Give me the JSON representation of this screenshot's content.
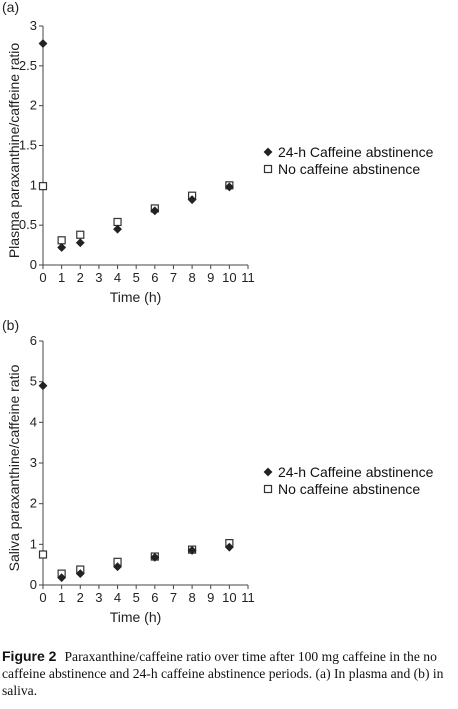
{
  "chart_data": [
    {
      "type": "scatter",
      "panel_label": "(a)",
      "xlabel": "Time (h)",
      "ylabel": "Plasma paraxanthine/caffeine ratio",
      "xlim": [
        0,
        11
      ],
      "ylim": [
        0,
        3
      ],
      "xticks": [
        0,
        1,
        2,
        3,
        4,
        5,
        6,
        7,
        8,
        9,
        10,
        11
      ],
      "yticks": [
        0,
        0.5,
        1,
        1.5,
        2,
        2.5,
        3
      ],
      "ytick_labels": [
        "0",
        "0.5",
        "1",
        "1.5",
        "2",
        "2.5",
        "3"
      ],
      "legend_position": "right",
      "grid": false,
      "series": [
        {
          "name": "24-h Caffeine abstinence",
          "marker": "diamond-filled",
          "x": [
            0,
            1,
            2,
            4,
            6,
            8,
            10
          ],
          "y": [
            2.78,
            0.22,
            0.28,
            0.45,
            0.68,
            0.82,
            0.98
          ]
        },
        {
          "name": "No caffeine abstinence",
          "marker": "square-open",
          "x": [
            0,
            1,
            2,
            4,
            6,
            8,
            10
          ],
          "y": [
            0.99,
            0.31,
            0.38,
            0.54,
            0.71,
            0.87,
            1.0
          ]
        }
      ]
    },
    {
      "type": "scatter",
      "panel_label": "(b)",
      "xlabel": "Time (h)",
      "ylabel": "Saliva paraxanthine/caffeine ratio",
      "xlim": [
        0,
        11
      ],
      "ylim": [
        0,
        6
      ],
      "xticks": [
        0,
        1,
        2,
        3,
        4,
        5,
        6,
        7,
        8,
        9,
        10,
        11
      ],
      "yticks": [
        0,
        1,
        2,
        3,
        4,
        5,
        6
      ],
      "ytick_labels": [
        "0",
        "1",
        "2",
        "3",
        "4",
        "5",
        "6"
      ],
      "legend_position": "right",
      "grid": false,
      "series": [
        {
          "name": "24-h Caffeine abstinence",
          "marker": "diamond-filled",
          "x": [
            0,
            1,
            2,
            4,
            6,
            8,
            10
          ],
          "y": [
            4.9,
            0.18,
            0.28,
            0.45,
            0.68,
            0.85,
            0.93
          ]
        },
        {
          "name": "No caffeine abstinence",
          "marker": "square-open",
          "x": [
            0,
            1,
            2,
            4,
            6,
            8,
            10
          ],
          "y": [
            0.75,
            0.28,
            0.38,
            0.57,
            0.7,
            0.87,
            1.03
          ]
        }
      ]
    }
  ],
  "caption": {
    "label": "Figure 2",
    "text": "Paraxanthine/caffeine ratio over time after 100 mg caffeine in the no caffeine abstinence and 24-h caffeine abstinence periods. (a) In plasma and (b) in saliva."
  },
  "colors": {
    "marker_fill": "#222222",
    "open_marker_fill": "#ffffff",
    "axis": "#444444"
  }
}
